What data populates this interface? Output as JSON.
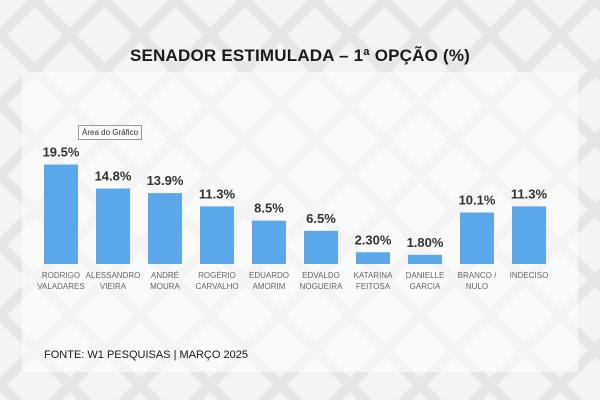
{
  "title": "SENADOR ESTIMULADA – 1ª OPÇÃO (%)",
  "tooltip": "Área do Gráfico",
  "source": "FONTE: W1 PESQUISAS | MARÇO 2025",
  "colors": {
    "bar": "#5aa8ea",
    "label": "#333333",
    "category": "#666666"
  },
  "chart_data": {
    "type": "bar",
    "title": "SENADOR ESTIMULADA – 1ª OPÇÃO (%)",
    "categories": [
      [
        "RODRIGO",
        "VALADARES"
      ],
      [
        "ALESSANDRO",
        "VIEIRA"
      ],
      [
        "ANDRÉ",
        "MOURA"
      ],
      [
        "ROGÉRIO",
        "CARVALHO"
      ],
      [
        "EDUARDO",
        "AMORIM"
      ],
      [
        "EDVALDO",
        "NOGUEIRA"
      ],
      [
        "KATARINA",
        "FEITOSA"
      ],
      [
        "DANIELLE",
        "GARCIA"
      ],
      [
        "BRANCO /",
        "NULO"
      ],
      [
        "INDECISO"
      ]
    ],
    "values": [
      19.5,
      14.8,
      13.9,
      11.3,
      8.5,
      6.5,
      2.3,
      1.8,
      10.1,
      11.3
    ],
    "data_labels": [
      "19.5%",
      "14.8%",
      "13.9%",
      "11.3%",
      "8.5%",
      "6.5%",
      "2.30%",
      "1.80%",
      "10.1%",
      "11.3%"
    ],
    "xlabel": "",
    "ylabel": "",
    "ylim": [
      0,
      20
    ],
    "grid": false,
    "legend": "none"
  }
}
